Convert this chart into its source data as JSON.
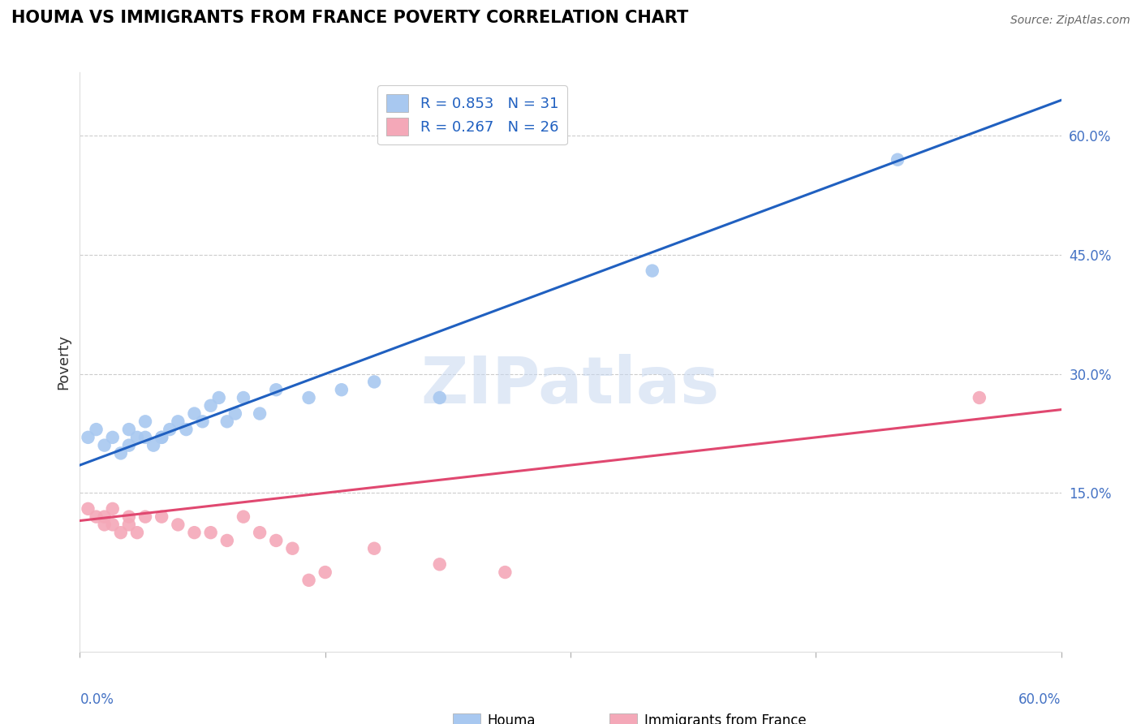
{
  "title": "HOUMA VS IMMIGRANTS FROM FRANCE POVERTY CORRELATION CHART",
  "source": "Source: ZipAtlas.com",
  "ylabel": "Poverty",
  "ytick_vals": [
    0.15,
    0.3,
    0.45,
    0.6
  ],
  "ytick_labels": [
    "15.0%",
    "30.0%",
    "45.0%",
    "60.0%"
  ],
  "xlim": [
    0.0,
    0.6
  ],
  "ylim": [
    -0.05,
    0.68
  ],
  "houma_R": 0.853,
  "houma_N": 31,
  "france_R": 0.267,
  "france_N": 26,
  "houma_color": "#A8C8F0",
  "france_color": "#F4A8B8",
  "houma_line_color": "#2060C0",
  "france_line_color": "#E04870",
  "watermark": "ZIPatlas",
  "houma_x": [
    0.005,
    0.01,
    0.015,
    0.02,
    0.025,
    0.03,
    0.03,
    0.035,
    0.04,
    0.04,
    0.045,
    0.05,
    0.05,
    0.055,
    0.06,
    0.065,
    0.07,
    0.075,
    0.08,
    0.085,
    0.09,
    0.095,
    0.1,
    0.11,
    0.12,
    0.14,
    0.16,
    0.18,
    0.22,
    0.35,
    0.5
  ],
  "houma_y": [
    0.22,
    0.23,
    0.21,
    0.22,
    0.2,
    0.21,
    0.23,
    0.22,
    0.22,
    0.24,
    0.21,
    0.22,
    0.22,
    0.23,
    0.24,
    0.23,
    0.25,
    0.24,
    0.26,
    0.27,
    0.24,
    0.25,
    0.27,
    0.25,
    0.28,
    0.27,
    0.28,
    0.29,
    0.27,
    0.43,
    0.57
  ],
  "france_x": [
    0.005,
    0.01,
    0.015,
    0.015,
    0.02,
    0.02,
    0.025,
    0.03,
    0.03,
    0.035,
    0.04,
    0.05,
    0.06,
    0.07,
    0.08,
    0.09,
    0.1,
    0.11,
    0.12,
    0.13,
    0.14,
    0.15,
    0.18,
    0.22,
    0.26,
    0.55
  ],
  "france_y": [
    0.13,
    0.12,
    0.11,
    0.12,
    0.13,
    0.11,
    0.1,
    0.12,
    0.11,
    0.1,
    0.12,
    0.12,
    0.11,
    0.1,
    0.1,
    0.09,
    0.12,
    0.1,
    0.09,
    0.08,
    0.04,
    0.05,
    0.08,
    0.06,
    0.05,
    0.27
  ],
  "houma_line_x": [
    0.0,
    0.6
  ],
  "houma_line_y": [
    0.185,
    0.645
  ],
  "france_line_x": [
    0.0,
    0.6
  ],
  "france_line_y": [
    0.115,
    0.255
  ]
}
